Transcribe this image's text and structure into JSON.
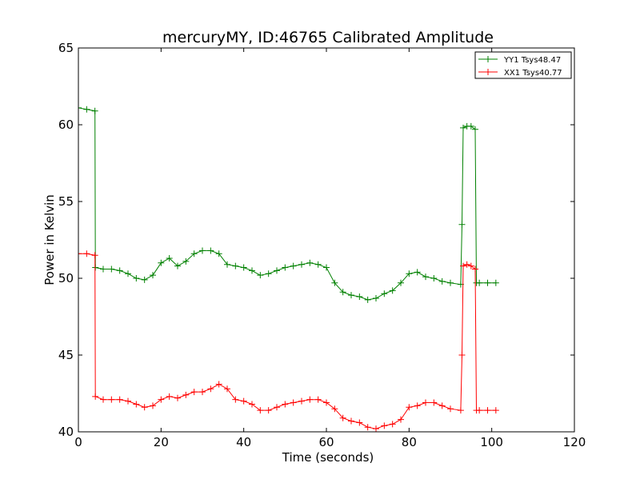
{
  "chart_data": {
    "type": "line",
    "title": "mercuryMY, ID:46765 Calibrated Amplitude",
    "xlabel": "Time (seconds)",
    "ylabel": "Power in Kelvin",
    "xlim": [
      0,
      120
    ],
    "ylim": [
      40,
      65
    ],
    "xticks": [
      0,
      20,
      40,
      60,
      80,
      100,
      120
    ],
    "yticks": [
      40,
      45,
      50,
      55,
      60,
      65
    ],
    "grid": false,
    "legend_position": "top-right",
    "series": [
      {
        "name": "YY1 Tsys48.47",
        "color": "#008000",
        "x": [
          0,
          2,
          4,
          4.1,
          6,
          8,
          10,
          12,
          14,
          16,
          18,
          20,
          22,
          24,
          26,
          28,
          30,
          32,
          34,
          36,
          38,
          40,
          42,
          44,
          46,
          48,
          50,
          52,
          54,
          56,
          58,
          60,
          62,
          64,
          66,
          68,
          70,
          72,
          74,
          76,
          78,
          80,
          82,
          84,
          86,
          88,
          90,
          92.5,
          92.8,
          93.1,
          94,
          95,
          96,
          96.3,
          97,
          99,
          101
        ],
        "y": [
          61.1,
          61.0,
          60.9,
          50.7,
          50.6,
          50.6,
          50.5,
          50.3,
          50.0,
          49.9,
          50.2,
          51.0,
          51.3,
          50.8,
          51.1,
          51.6,
          51.8,
          51.8,
          51.6,
          50.9,
          50.8,
          50.7,
          50.5,
          50.2,
          50.3,
          50.5,
          50.7,
          50.8,
          50.9,
          51.0,
          50.9,
          50.7,
          49.7,
          49.1,
          48.9,
          48.8,
          48.6,
          48.7,
          49.0,
          49.2,
          49.7,
          50.3,
          50.4,
          50.1,
          50.0,
          49.8,
          49.7,
          49.6,
          53.5,
          59.8,
          59.9,
          59.9,
          59.7,
          49.7,
          49.7,
          49.7,
          49.7
        ]
      },
      {
        "name": "XX1 Tsys40.77",
        "color": "#ff0000",
        "x": [
          0,
          2,
          4,
          4.1,
          6,
          8,
          10,
          12,
          14,
          16,
          18,
          20,
          22,
          24,
          26,
          28,
          30,
          32,
          34,
          36,
          38,
          40,
          42,
          44,
          46,
          48,
          50,
          52,
          54,
          56,
          58,
          60,
          62,
          64,
          66,
          68,
          70,
          72,
          74,
          76,
          78,
          80,
          82,
          84,
          86,
          88,
          90,
          92.5,
          92.8,
          93.1,
          94,
          95,
          96,
          96.3,
          97,
          99,
          101
        ],
        "y": [
          51.6,
          51.6,
          51.5,
          42.3,
          42.1,
          42.1,
          42.1,
          42.0,
          41.8,
          41.6,
          41.7,
          42.1,
          42.3,
          42.2,
          42.4,
          42.6,
          42.6,
          42.8,
          43.1,
          42.8,
          42.1,
          42.0,
          41.8,
          41.4,
          41.4,
          41.6,
          41.8,
          41.9,
          42.0,
          42.1,
          42.1,
          41.9,
          41.5,
          40.9,
          40.7,
          40.6,
          40.3,
          40.2,
          40.4,
          40.5,
          40.8,
          41.6,
          41.7,
          41.9,
          41.9,
          41.7,
          41.5,
          41.4,
          45.0,
          50.8,
          50.9,
          50.8,
          50.6,
          41.4,
          41.4,
          41.4,
          41.4
        ]
      }
    ]
  }
}
